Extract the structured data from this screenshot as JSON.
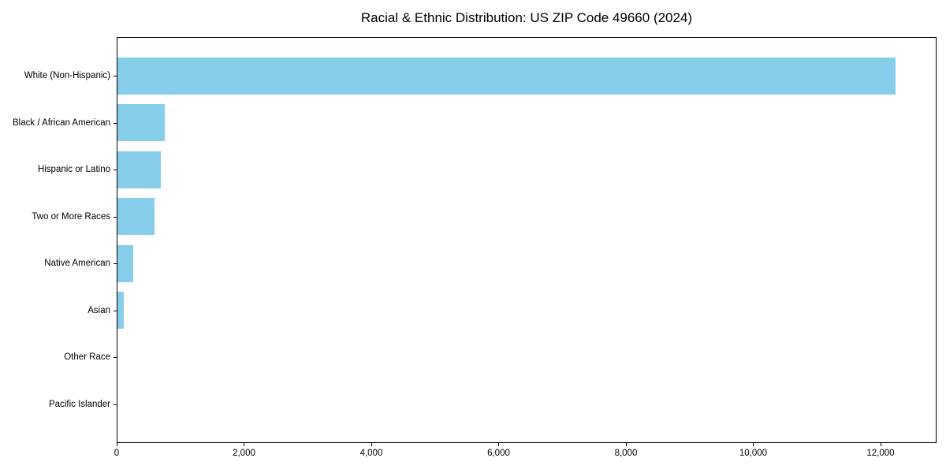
{
  "title": "Racial & Ethnic Distribution: US ZIP Code 49660 (2024)",
  "colors": {
    "bar": "#87CEEB",
    "axis": "#000000",
    "text": "#000000",
    "background": "#FFFFFF"
  },
  "chart_data": {
    "type": "bar",
    "orientation": "horizontal",
    "title": "Racial & Ethnic Distribution: US ZIP Code 49660 (2024)",
    "xlabel": "",
    "ylabel": "",
    "categories": [
      "White (Non-Hispanic)",
      "Black / African American",
      "Hispanic or Latino",
      "Two or More Races",
      "Native American",
      "Asian",
      "Other Race",
      "Pacific Islander"
    ],
    "values": [
      12220,
      745,
      680,
      580,
      250,
      100,
      0,
      0
    ],
    "xlim": [
      0,
      12880
    ],
    "x_ticks": [
      0,
      2000,
      4000,
      6000,
      8000,
      10000,
      12000
    ],
    "x_tick_labels": [
      "0",
      "2,000",
      "4,000",
      "6,000",
      "8,000",
      "10,000",
      "12,000"
    ],
    "bar_color": "#87CEEB",
    "grid": false,
    "legend": null
  }
}
